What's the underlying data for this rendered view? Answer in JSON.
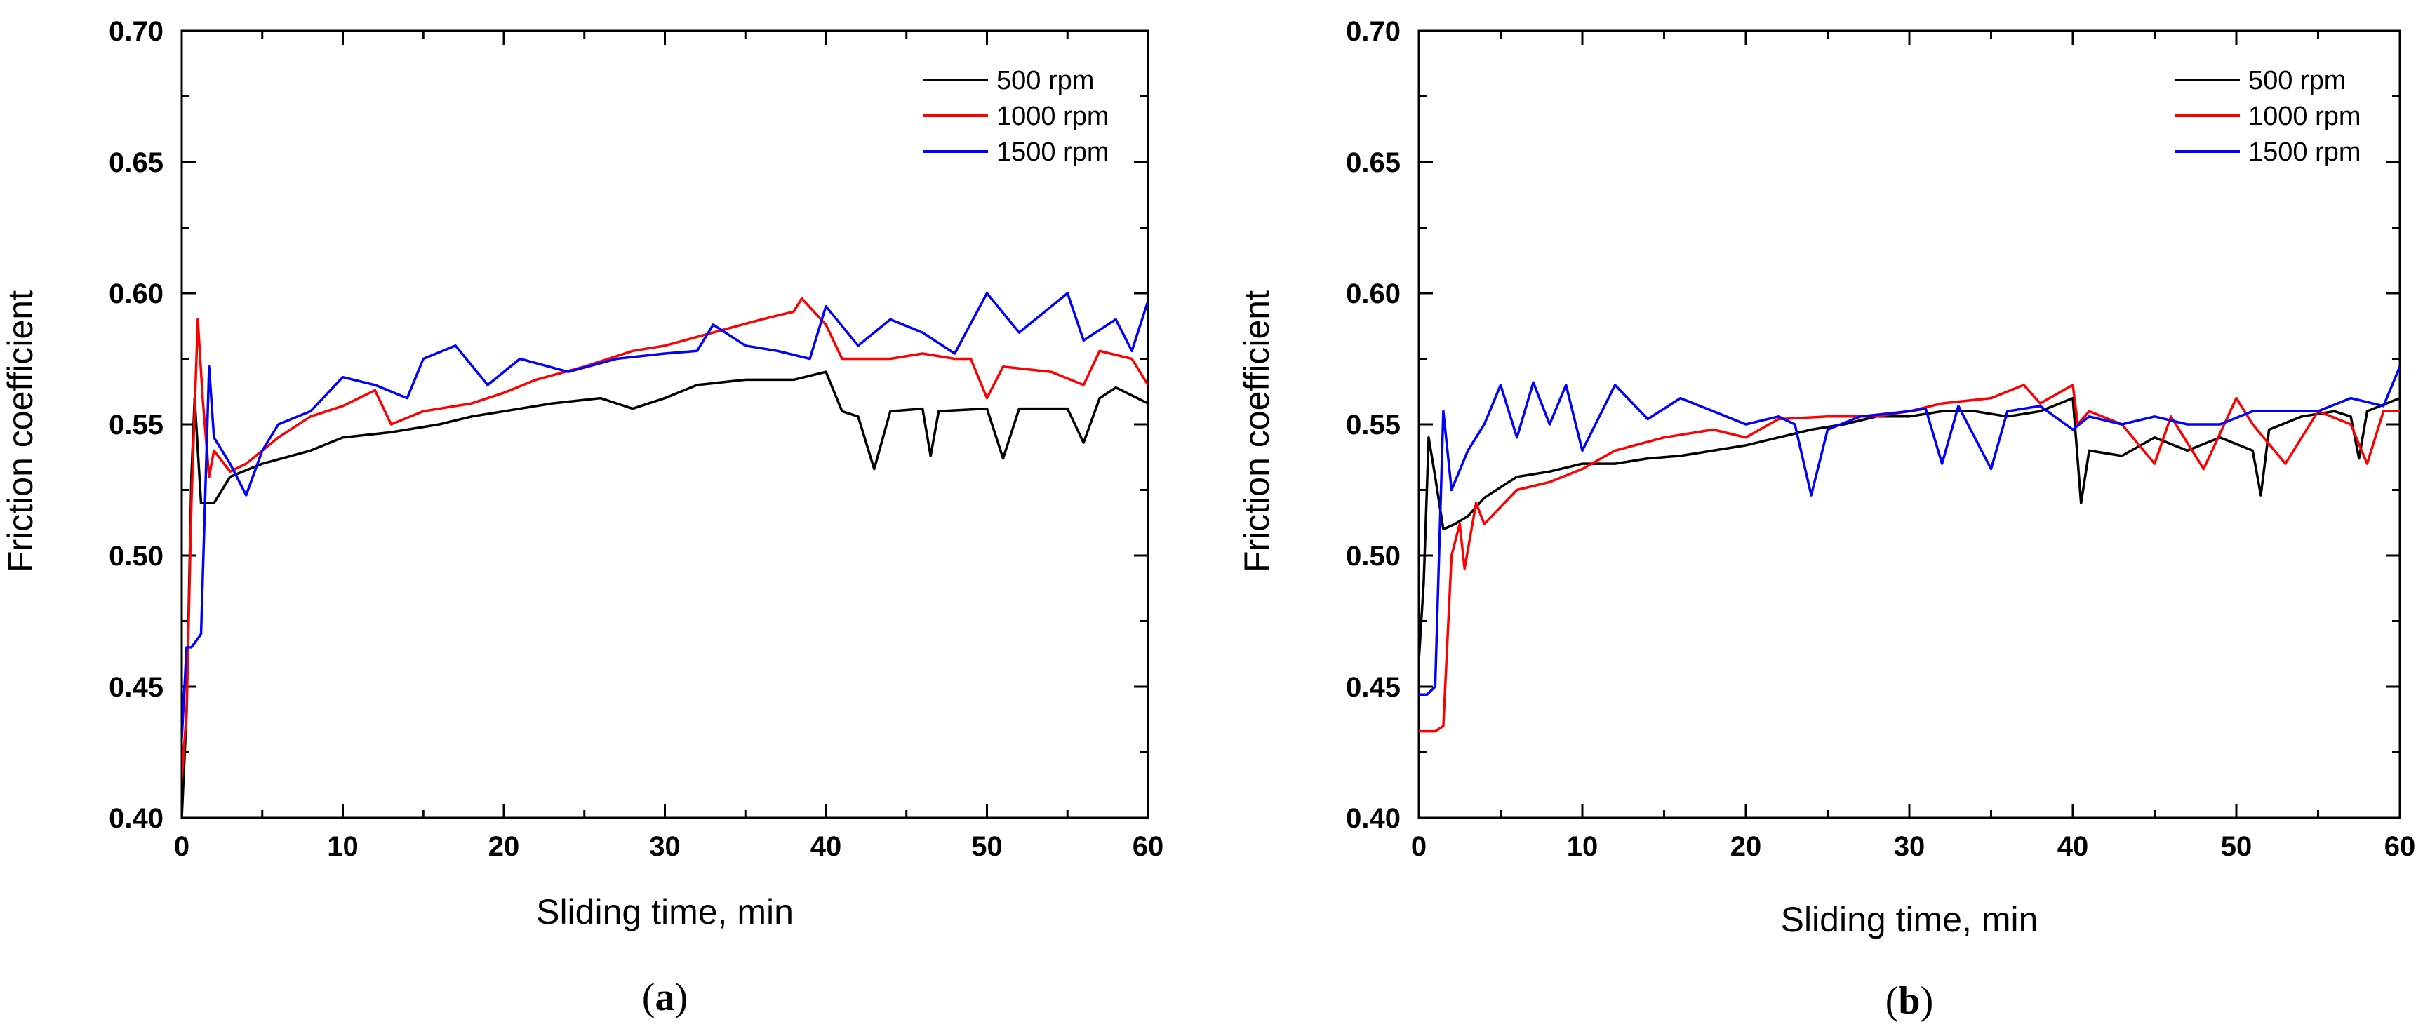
{
  "chart_data": [
    {
      "type": "line",
      "panel_label": "a",
      "xlabel": "Sliding time, min",
      "ylabel": "Friction coefficient",
      "xlim": [
        0,
        60
      ],
      "ylim": [
        0.4,
        0.7
      ],
      "xticks": [
        0,
        10,
        20,
        30,
        40,
        50,
        60
      ],
      "xtick_labels": [
        "0",
        "10",
        "20",
        "30",
        "40",
        "50",
        "60"
      ],
      "yticks": [
        0.4,
        0.45,
        0.5,
        0.55,
        0.6,
        0.65,
        0.7
      ],
      "ytick_labels": [
        "0.40",
        "0.45",
        "0.50",
        "0.55",
        "0.60",
        "0.65",
        "0.70"
      ],
      "legend_position": "top-right",
      "series": [
        {
          "name": "500 rpm",
          "color": "#000000",
          "points": [
            [
              0,
              0.4
            ],
            [
              0.3,
              0.44
            ],
            [
              0.6,
              0.53
            ],
            [
              0.8,
              0.56
            ],
            [
              1.2,
              0.52
            ],
            [
              2,
              0.52
            ],
            [
              3,
              0.53
            ],
            [
              5,
              0.535
            ],
            [
              8,
              0.54
            ],
            [
              10,
              0.545
            ],
            [
              13,
              0.547
            ],
            [
              16,
              0.55
            ],
            [
              18,
              0.553
            ],
            [
              20,
              0.555
            ],
            [
              23,
              0.558
            ],
            [
              26,
              0.56
            ],
            [
              28,
              0.556
            ],
            [
              30,
              0.56
            ],
            [
              32,
              0.565
            ],
            [
              35,
              0.567
            ],
            [
              38,
              0.567
            ],
            [
              40,
              0.57
            ],
            [
              41,
              0.555
            ],
            [
              42,
              0.553
            ],
            [
              43,
              0.533
            ],
            [
              44,
              0.555
            ],
            [
              46,
              0.556
            ],
            [
              46.5,
              0.538
            ],
            [
              47,
              0.555
            ],
            [
              50,
              0.556
            ],
            [
              51,
              0.537
            ],
            [
              52,
              0.556
            ],
            [
              55,
              0.556
            ],
            [
              56,
              0.543
            ],
            [
              57,
              0.56
            ],
            [
              58,
              0.564
            ],
            [
              60,
              0.558
            ]
          ]
        },
        {
          "name": "1000 rpm",
          "color": "#ff0000",
          "points": [
            [
              0,
              0.415
            ],
            [
              0.3,
              0.44
            ],
            [
              0.6,
              0.52
            ],
            [
              1,
              0.59
            ],
            [
              1.3,
              0.56
            ],
            [
              1.7,
              0.53
            ],
            [
              2,
              0.54
            ],
            [
              3,
              0.532
            ],
            [
              4,
              0.535
            ],
            [
              6,
              0.545
            ],
            [
              8,
              0.553
            ],
            [
              10,
              0.557
            ],
            [
              12,
              0.563
            ],
            [
              13,
              0.55
            ],
            [
              15,
              0.555
            ],
            [
              18,
              0.558
            ],
            [
              20,
              0.562
            ],
            [
              22,
              0.567
            ],
            [
              25,
              0.572
            ],
            [
              28,
              0.578
            ],
            [
              30,
              0.58
            ],
            [
              33,
              0.585
            ],
            [
              36,
              0.59
            ],
            [
              38,
              0.593
            ],
            [
              38.5,
              0.598
            ],
            [
              40,
              0.588
            ],
            [
              41,
              0.575
            ],
            [
              44,
              0.575
            ],
            [
              46,
              0.577
            ],
            [
              48,
              0.575
            ],
            [
              49,
              0.575
            ],
            [
              50,
              0.56
            ],
            [
              51,
              0.572
            ],
            [
              54,
              0.57
            ],
            [
              56,
              0.565
            ],
            [
              57,
              0.578
            ],
            [
              59,
              0.575
            ],
            [
              60,
              0.565
            ]
          ]
        },
        {
          "name": "1500 rpm",
          "color": "#0000ff",
          "points": [
            [
              0,
              0.43
            ],
            [
              0.3,
              0.465
            ],
            [
              0.6,
              0.465
            ],
            [
              1.2,
              0.47
            ],
            [
              1.7,
              0.572
            ],
            [
              2,
              0.545
            ],
            [
              3,
              0.535
            ],
            [
              4,
              0.523
            ],
            [
              5,
              0.54
            ],
            [
              6,
              0.55
            ],
            [
              8,
              0.555
            ],
            [
              10,
              0.568
            ],
            [
              12,
              0.565
            ],
            [
              14,
              0.56
            ],
            [
              15,
              0.575
            ],
            [
              17,
              0.58
            ],
            [
              19,
              0.565
            ],
            [
              21,
              0.575
            ],
            [
              24,
              0.57
            ],
            [
              27,
              0.575
            ],
            [
              30,
              0.577
            ],
            [
              32,
              0.578
            ],
            [
              33,
              0.588
            ],
            [
              35,
              0.58
            ],
            [
              37,
              0.578
            ],
            [
              39,
              0.575
            ],
            [
              40,
              0.595
            ],
            [
              42,
              0.58
            ],
            [
              44,
              0.59
            ],
            [
              46,
              0.585
            ],
            [
              48,
              0.577
            ],
            [
              50,
              0.6
            ],
            [
              52,
              0.585
            ],
            [
              54,
              0.595
            ],
            [
              55,
              0.6
            ],
            [
              56,
              0.582
            ],
            [
              58,
              0.59
            ],
            [
              59,
              0.578
            ],
            [
              60,
              0.597
            ]
          ]
        }
      ]
    },
    {
      "type": "line",
      "panel_label": "b",
      "xlabel": "Sliding time, min",
      "ylabel": "Friction coefficient",
      "xlim": [
        0,
        60
      ],
      "ylim": [
        0.4,
        0.7
      ],
      "xticks": [
        0,
        10,
        20,
        30,
        40,
        50,
        60
      ],
      "xtick_labels": [
        "0",
        "10",
        "20",
        "30",
        "40",
        "50",
        "60"
      ],
      "yticks": [
        0.4,
        0.45,
        0.5,
        0.55,
        0.6,
        0.65,
        0.7
      ],
      "ytick_labels": [
        "0.40",
        "0.45",
        "0.50",
        "0.55",
        "0.60",
        "0.65",
        "0.70"
      ],
      "legend_position": "top-right",
      "series": [
        {
          "name": "500 rpm",
          "color": "#000000",
          "points": [
            [
              0,
              0.46
            ],
            [
              0.3,
              0.49
            ],
            [
              0.6,
              0.545
            ],
            [
              1,
              0.53
            ],
            [
              1.5,
              0.51
            ],
            [
              2.2,
              0.512
            ],
            [
              3,
              0.515
            ],
            [
              4,
              0.522
            ],
            [
              6,
              0.53
            ],
            [
              8,
              0.532
            ],
            [
              10,
              0.535
            ],
            [
              12,
              0.535
            ],
            [
              14,
              0.537
            ],
            [
              16,
              0.538
            ],
            [
              18,
              0.54
            ],
            [
              20,
              0.542
            ],
            [
              22,
              0.545
            ],
            [
              24,
              0.548
            ],
            [
              26,
              0.55
            ],
            [
              28,
              0.553
            ],
            [
              30,
              0.553
            ],
            [
              32,
              0.555
            ],
            [
              34,
              0.555
            ],
            [
              36,
              0.553
            ],
            [
              38,
              0.555
            ],
            [
              40,
              0.56
            ],
            [
              40.5,
              0.52
            ],
            [
              41,
              0.54
            ],
            [
              43,
              0.538
            ],
            [
              45,
              0.545
            ],
            [
              47,
              0.54
            ],
            [
              49,
              0.545
            ],
            [
              51,
              0.54
            ],
            [
              51.5,
              0.523
            ],
            [
              52,
              0.548
            ],
            [
              54,
              0.553
            ],
            [
              56,
              0.555
            ],
            [
              57,
              0.553
            ],
            [
              57.5,
              0.537
            ],
            [
              58,
              0.555
            ],
            [
              60,
              0.56
            ]
          ]
        },
        {
          "name": "1000 rpm",
          "color": "#ff0000",
          "points": [
            [
              0,
              0.433
            ],
            [
              1,
              0.433
            ],
            [
              1.5,
              0.435
            ],
            [
              2,
              0.5
            ],
            [
              2.5,
              0.512
            ],
            [
              2.8,
              0.495
            ],
            [
              3.5,
              0.52
            ],
            [
              4,
              0.512
            ],
            [
              6,
              0.525
            ],
            [
              8,
              0.528
            ],
            [
              10,
              0.533
            ],
            [
              12,
              0.54
            ],
            [
              15,
              0.545
            ],
            [
              18,
              0.548
            ],
            [
              20,
              0.545
            ],
            [
              22,
              0.552
            ],
            [
              25,
              0.553
            ],
            [
              28,
              0.553
            ],
            [
              30,
              0.555
            ],
            [
              32,
              0.558
            ],
            [
              35,
              0.56
            ],
            [
              37,
              0.565
            ],
            [
              38,
              0.558
            ],
            [
              40,
              0.565
            ],
            [
              40.3,
              0.55
            ],
            [
              41,
              0.555
            ],
            [
              43,
              0.55
            ],
            [
              45,
              0.535
            ],
            [
              46,
              0.553
            ],
            [
              48,
              0.533
            ],
            [
              50,
              0.56
            ],
            [
              51,
              0.55
            ],
            [
              53,
              0.535
            ],
            [
              55,
              0.555
            ],
            [
              57,
              0.55
            ],
            [
              58,
              0.535
            ],
            [
              59,
              0.555
            ],
            [
              60,
              0.555
            ]
          ]
        },
        {
          "name": "1500 rpm",
          "color": "#0000ff",
          "points": [
            [
              0,
              0.447
            ],
            [
              0.5,
              0.447
            ],
            [
              1,
              0.45
            ],
            [
              1.5,
              0.555
            ],
            [
              2,
              0.525
            ],
            [
              3,
              0.54
            ],
            [
              4,
              0.55
            ],
            [
              5,
              0.565
            ],
            [
              6,
              0.545
            ],
            [
              7,
              0.566
            ],
            [
              8,
              0.55
            ],
            [
              9,
              0.565
            ],
            [
              10,
              0.54
            ],
            [
              12,
              0.565
            ],
            [
              14,
              0.552
            ],
            [
              16,
              0.56
            ],
            [
              18,
              0.555
            ],
            [
              20,
              0.55
            ],
            [
              22,
              0.553
            ],
            [
              23,
              0.55
            ],
            [
              24,
              0.523
            ],
            [
              25,
              0.548
            ],
            [
              27,
              0.553
            ],
            [
              30,
              0.555
            ],
            [
              31,
              0.556
            ],
            [
              32,
              0.535
            ],
            [
              33,
              0.557
            ],
            [
              35,
              0.533
            ],
            [
              36,
              0.555
            ],
            [
              38,
              0.557
            ],
            [
              40,
              0.548
            ],
            [
              41,
              0.553
            ],
            [
              43,
              0.55
            ],
            [
              45,
              0.553
            ],
            [
              47,
              0.55
            ],
            [
              49,
              0.55
            ],
            [
              51,
              0.555
            ],
            [
              53,
              0.555
            ],
            [
              55,
              0.555
            ],
            [
              57,
              0.56
            ],
            [
              59,
              0.557
            ],
            [
              60,
              0.572
            ]
          ]
        }
      ]
    }
  ]
}
